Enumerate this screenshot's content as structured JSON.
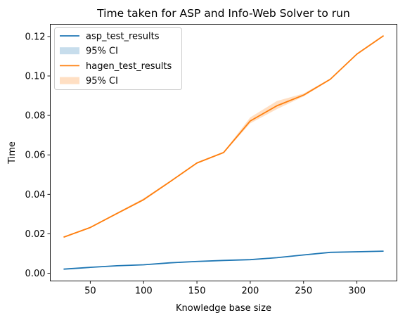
{
  "chart_data": {
    "type": "line",
    "title": "Time taken for ASP and Info-Web Solver to run",
    "xlabel": "Knowledge base size",
    "ylabel": "Time",
    "xlim": [
      12.5,
      337.5
    ],
    "ylim": [
      -0.0039,
      0.1262
    ],
    "xticks": [
      50,
      100,
      150,
      200,
      250,
      300
    ],
    "yticks": [
      0.0,
      0.02,
      0.04,
      0.06,
      0.08,
      0.1,
      0.12
    ],
    "x": [
      25,
      50,
      75,
      100,
      125,
      150,
      175,
      200,
      225,
      250,
      275,
      300,
      325
    ],
    "series": [
      {
        "name": "asp_test_results",
        "color": "#1f77b4",
        "values": [
          0.0021,
          0.003,
          0.0038,
          0.0043,
          0.0053,
          0.006,
          0.0065,
          0.0069,
          0.0079,
          0.0093,
          0.0106,
          0.0109,
          0.0112
        ],
        "ci_lower": [
          0.0019,
          0.0028,
          0.0036,
          0.0041,
          0.0051,
          0.0058,
          0.0063,
          0.0067,
          0.0077,
          0.0091,
          0.0104,
          0.0107,
          0.011
        ],
        "ci_upper": [
          0.0023,
          0.0032,
          0.004,
          0.0045,
          0.0055,
          0.0062,
          0.0067,
          0.0071,
          0.0081,
          0.0095,
          0.0108,
          0.0111,
          0.0114
        ]
      },
      {
        "name": "hagen_test_results",
        "color": "#ff7f0e",
        "values": [
          0.0183,
          0.0232,
          0.0303,
          0.0373,
          0.0465,
          0.0559,
          0.0612,
          0.0772,
          0.0849,
          0.0903,
          0.0983,
          0.1111,
          0.1204
        ],
        "ci_lower": [
          0.018,
          0.0229,
          0.0299,
          0.0368,
          0.0461,
          0.0555,
          0.0609,
          0.076,
          0.0832,
          0.0896,
          0.0979,
          0.1107,
          0.12
        ],
        "ci_upper": [
          0.0186,
          0.0235,
          0.0307,
          0.038,
          0.0469,
          0.0563,
          0.0615,
          0.079,
          0.0873,
          0.0911,
          0.0987,
          0.1115,
          0.1208
        ]
      }
    ],
    "legend": {
      "position": "top-left",
      "entries": [
        {
          "label": "asp_test_results",
          "kind": "line",
          "color": "#1f77b4"
        },
        {
          "label": "95% CI",
          "kind": "band",
          "color": "#1f77b4"
        },
        {
          "label": "hagen_test_results",
          "kind": "line",
          "color": "#ff7f0e"
        },
        {
          "label": "95% CI",
          "kind": "band",
          "color": "#ff7f0e"
        }
      ]
    },
    "grid": false
  }
}
